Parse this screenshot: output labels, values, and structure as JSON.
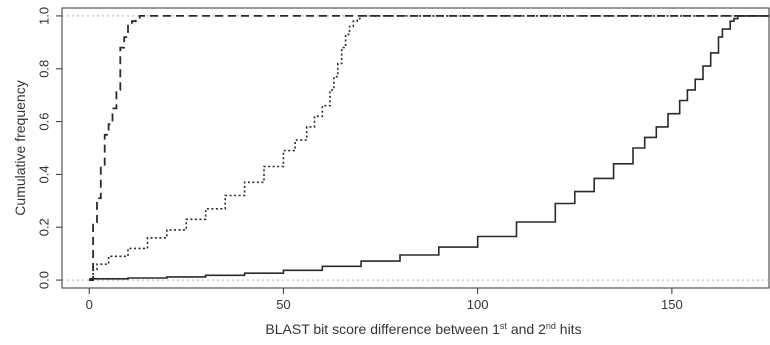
{
  "chart_data": {
    "type": "line",
    "title": "",
    "xlabel": "BLAST bit score difference between 1st and 2nd hits",
    "xlabel_parts": {
      "pre": "BLAST bit score difference between 1",
      "sup1": "st",
      "mid": " and 2",
      "sup2": "nd",
      "post": " hits"
    },
    "ylabel": "Cumulative frequency",
    "xlim": [
      -7,
      175
    ],
    "ylim": [
      -0.03,
      1.03
    ],
    "xticks": [
      0,
      50,
      100,
      150
    ],
    "yticks": [
      0.0,
      0.2,
      0.4,
      0.6,
      0.8,
      1.0
    ],
    "ytick_labels": [
      "0.0",
      "0.2",
      "0.4",
      "0.6",
      "0.8",
      "1.0"
    ],
    "reference_lines": [
      0.0,
      1.0
    ],
    "grid": false,
    "legend": "none",
    "series": [
      {
        "style": "dashed",
        "step": true,
        "x": [
          0,
          1,
          2,
          3,
          4,
          5,
          6,
          7,
          8,
          9,
          10,
          11,
          12,
          13
        ],
        "y": [
          0.0,
          0.21,
          0.31,
          0.43,
          0.55,
          0.59,
          0.65,
          0.72,
          0.88,
          0.92,
          0.97,
          0.98,
          0.99,
          1.0
        ]
      },
      {
        "style": "dotted",
        "step": true,
        "x": [
          0,
          1,
          2,
          5,
          10,
          15,
          20,
          25,
          30,
          35,
          40,
          45,
          50,
          53,
          56,
          58,
          60,
          62,
          63,
          64,
          65,
          66,
          67,
          68,
          69,
          70
        ],
        "y": [
          0.0,
          0.04,
          0.06,
          0.09,
          0.12,
          0.16,
          0.19,
          0.23,
          0.27,
          0.32,
          0.37,
          0.43,
          0.49,
          0.53,
          0.58,
          0.62,
          0.66,
          0.72,
          0.77,
          0.82,
          0.88,
          0.93,
          0.96,
          0.98,
          0.99,
          1.0
        ]
      },
      {
        "style": "solid",
        "step": true,
        "x": [
          0,
          10,
          20,
          30,
          40,
          50,
          60,
          70,
          80,
          90,
          100,
          110,
          120,
          125,
          130,
          135,
          140,
          143,
          146,
          149,
          152,
          154,
          156,
          158,
          160,
          162,
          163,
          165,
          166,
          167,
          175
        ],
        "y": [
          0.005,
          0.008,
          0.012,
          0.018,
          0.026,
          0.037,
          0.052,
          0.072,
          0.095,
          0.125,
          0.165,
          0.22,
          0.29,
          0.335,
          0.385,
          0.44,
          0.5,
          0.54,
          0.58,
          0.63,
          0.68,
          0.72,
          0.76,
          0.81,
          0.86,
          0.92,
          0.95,
          0.98,
          0.99,
          1.0,
          1.0
        ]
      }
    ]
  }
}
